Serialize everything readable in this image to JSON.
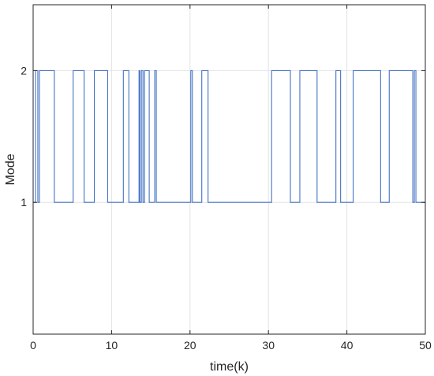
{
  "chart_data": {
    "type": "line",
    "step": true,
    "title": "",
    "xlabel": "time(k)",
    "ylabel": "Mode",
    "xlim": [
      0,
      50
    ],
    "ylim": [
      0,
      2.5
    ],
    "xticks": [
      0,
      10,
      20,
      30,
      40,
      50
    ],
    "yticks": [
      1,
      2
    ],
    "grid": true,
    "color": "#4472C4",
    "x": [
      0,
      0.3,
      0.6,
      0.8,
      1.4,
      2.1,
      2.7,
      5.1,
      6.3,
      6.5,
      7.8,
      8.1,
      9.5,
      11.5,
      12.0,
      12.2,
      13.5,
      13.6,
      13.8,
      14.0,
      14.2,
      14.8,
      14.9,
      15.5,
      15.7,
      16.0,
      20.1,
      20.3,
      20.6,
      21.5,
      22.3,
      30.4,
      31.6,
      32.8,
      33.6,
      34.0,
      36.2,
      38.6,
      38.9,
      39.2,
      40.8,
      44.3,
      44.9,
      45.4,
      48.4,
      48.6,
      48.8,
      49.0,
      50
    ],
    "y": [
      1,
      2,
      1,
      2,
      2,
      2,
      1,
      2,
      2,
      1,
      2,
      2,
      1,
      2,
      2,
      1,
      2,
      1,
      2,
      1,
      2,
      1,
      1,
      2,
      1,
      1,
      2,
      1,
      1,
      2,
      1,
      2,
      2,
      1,
      1,
      2,
      1,
      2,
      2,
      1,
      2,
      1,
      1,
      2,
      1,
      2,
      1,
      1,
      1
    ]
  }
}
